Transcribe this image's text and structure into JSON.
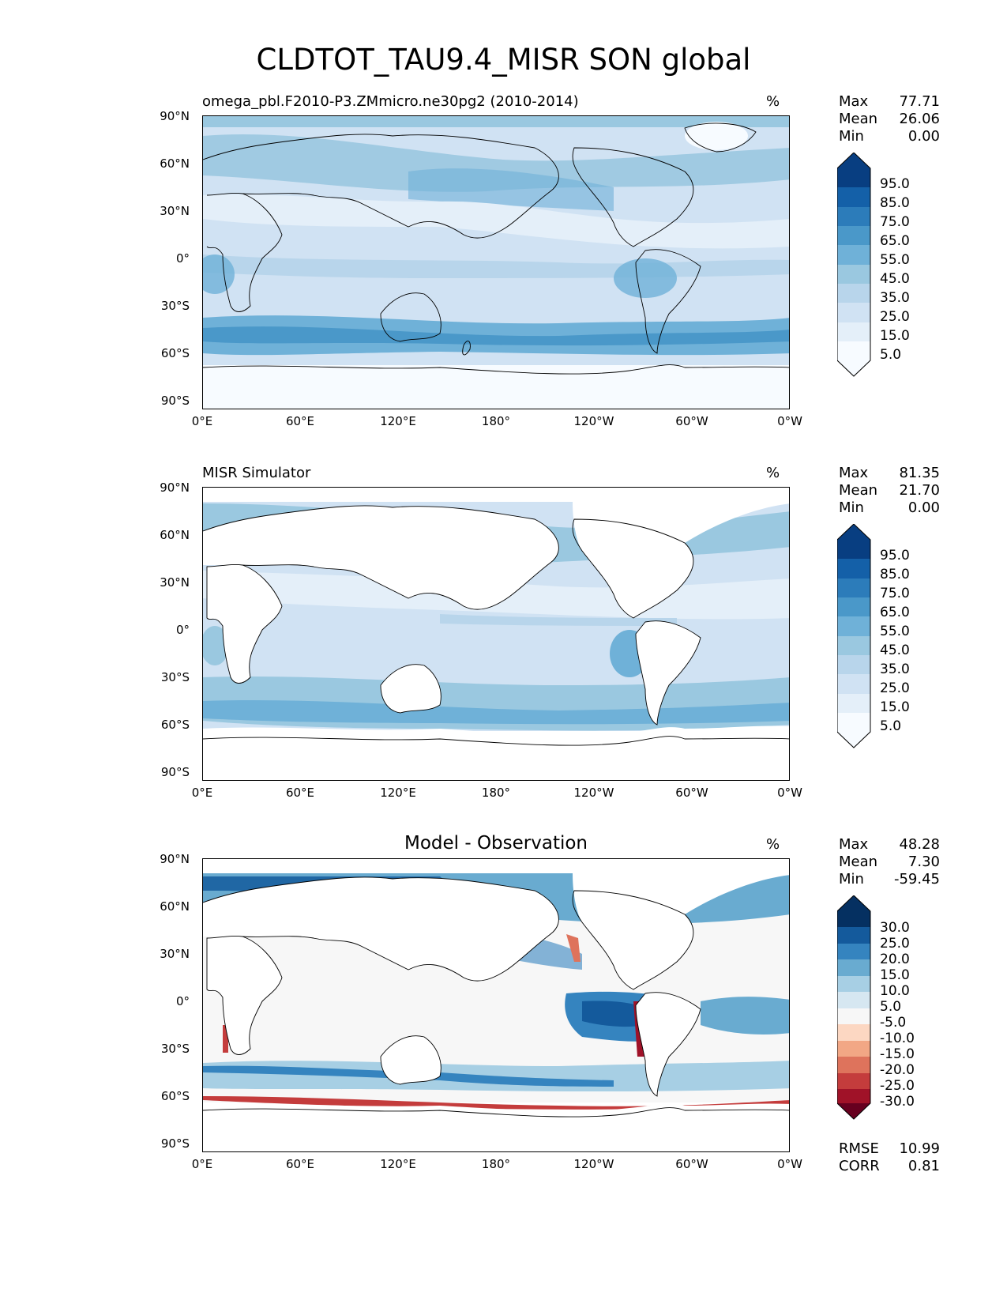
{
  "figure_title": "CLDTOT_TAU9.4_MISR SON global",
  "colors": {
    "blues": [
      "#f7fbff",
      "#e4eff9",
      "#d0e2f3",
      "#b8d5eb",
      "#9ac8e0",
      "#6fb1d8",
      "#4a98c9",
      "#2c7cba",
      "#1460a8",
      "#083e81"
    ],
    "diverging": [
      "#67001f",
      "#a01228",
      "#c43c3c",
      "#de735c",
      "#f2a785",
      "#fcd7c2",
      "#f7f7f7",
      "#d6e7f1",
      "#a7cfe4",
      "#69abd0",
      "#3584bf",
      "#145a9c",
      "#053061"
    ]
  },
  "chart_data": [
    {
      "type": "heatmap",
      "panel": "model",
      "left_title": "omega_pbl.F2010-P3.ZMmicro.ne30pg2 (2010-2014)",
      "units": "%",
      "stats": {
        "Max": "77.71",
        "Mean": "26.06",
        "Min": "0.00"
      },
      "colorbar_ticks": [
        "95.0",
        "85.0",
        "75.0",
        "65.0",
        "55.0",
        "45.0",
        "35.0",
        "25.0",
        "15.0",
        "5.0"
      ],
      "xticks": [
        "0°E",
        "60°E",
        "120°E",
        "180°",
        "120°W",
        "60°W",
        "0°W"
      ],
      "yticks": [
        "90°N",
        "60°N",
        "30°N",
        "0°",
        "30°S",
        "60°S",
        "90°S"
      ]
    },
    {
      "type": "heatmap",
      "panel": "obs",
      "left_title": "MISR Simulator",
      "units": "%",
      "stats": {
        "Max": "81.35",
        "Mean": "21.70",
        "Min": "0.00"
      },
      "colorbar_ticks": [
        "95.0",
        "85.0",
        "75.0",
        "65.0",
        "55.0",
        "45.0",
        "35.0",
        "25.0",
        "15.0",
        "5.0"
      ],
      "xticks": [
        "0°E",
        "60°E",
        "120°E",
        "180°",
        "120°W",
        "60°W",
        "0°W"
      ],
      "yticks": [
        "90°N",
        "60°N",
        "30°N",
        "0°",
        "30°S",
        "60°S",
        "90°S"
      ]
    },
    {
      "type": "heatmap",
      "panel": "diff",
      "center_title": "Model - Observation",
      "units": "%",
      "stats": {
        "Max": "48.28",
        "Mean": "7.30",
        "Min": "-59.45"
      },
      "colorbar_ticks": [
        "30.0",
        "25.0",
        "20.0",
        "15.0",
        "10.0",
        "5.0",
        "-5.0",
        "-10.0",
        "-15.0",
        "-20.0",
        "-25.0",
        "-30.0"
      ],
      "extra_stats": {
        "RMSE": "10.99",
        "CORR": "0.81"
      },
      "xticks": [
        "0°E",
        "60°E",
        "120°E",
        "180°",
        "120°W",
        "60°W",
        "0°W"
      ],
      "yticks": [
        "90°N",
        "60°N",
        "30°N",
        "0°",
        "30°S",
        "60°S",
        "90°S"
      ]
    }
  ]
}
